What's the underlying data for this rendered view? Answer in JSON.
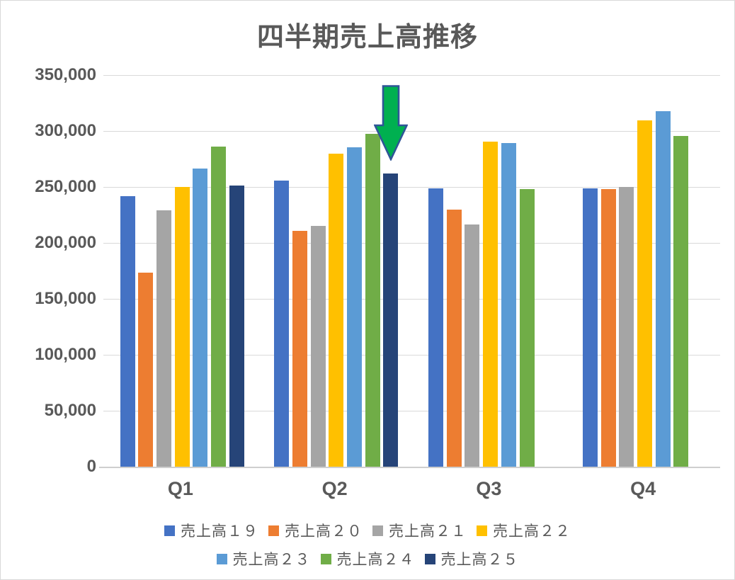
{
  "chart_data": {
    "type": "bar",
    "title": "四半期売上高推移",
    "xlabel": "",
    "ylabel": "",
    "categories": [
      "Q1",
      "Q2",
      "Q3",
      "Q4"
    ],
    "series": [
      {
        "name": "売上高１９",
        "color": "#4472C4",
        "values": [
          242000,
          255500,
          249000,
          248500
        ]
      },
      {
        "name": "売上高２０",
        "color": "#ED7D31",
        "values": [
          173500,
          211000,
          230000,
          248000
        ]
      },
      {
        "name": "売上高２１",
        "color": "#A5A5A5",
        "values": [
          229000,
          215500,
          216500,
          250000
        ]
      },
      {
        "name": "売上高２２",
        "color": "#FFC000",
        "values": [
          250000,
          280000,
          290500,
          309500
        ]
      },
      {
        "name": "売上高２３",
        "color": "#5B9BD5",
        "values": [
          266500,
          285500,
          289000,
          318000
        ]
      },
      {
        "name": "売上高２４",
        "color": "#70AD47",
        "values": [
          286000,
          297500,
          248000,
          295500
        ]
      },
      {
        "name": "売上高２５",
        "color": "#264478",
        "values": [
          251000,
          262000,
          null,
          null
        ]
      }
    ],
    "ylim": [
      0,
      350000
    ],
    "ytick_step": 50000,
    "ytick_labels": [
      "0",
      "50,000",
      "100,000",
      "150,000",
      "200,000",
      "250,000",
      "300,000",
      "350,000"
    ],
    "grid": true,
    "legend_position": "bottom",
    "legend_rows": [
      [
        "売上高１９",
        "売上高２０",
        "売上高２１",
        "売上高２２"
      ],
      [
        "売上高２３",
        "売上高２４",
        "売上高２５"
      ]
    ],
    "annotation": {
      "type": "down-arrow",
      "target_category": "Q2",
      "target_series": "売上高２５",
      "fill_color": "#00B050",
      "border_color": "#2F5597"
    },
    "colors": {
      "text": "#595959",
      "gridline": "#D9D9D9",
      "axis_line": "#CFCFCF",
      "background": "#FFFFFF",
      "border": "#D9D9D9"
    }
  }
}
